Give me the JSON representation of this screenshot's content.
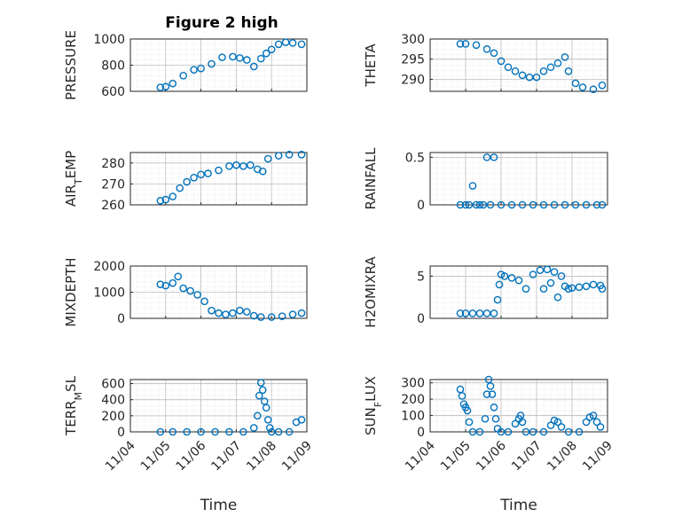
{
  "figure": {
    "title": "Figure 2 high"
  },
  "chart_data": [
    {
      "type": "scatter",
      "title": "Figure 2 high",
      "ylabel": "PRESSURE",
      "xlabel": "",
      "ylim": [
        600,
        1000
      ],
      "yticks": [
        600,
        800,
        1000
      ],
      "xlim": [
        0,
        5
      ],
      "grid": true,
      "minor_grid": true,
      "marker": "circle",
      "color": "#0072BD",
      "x": [
        0.85,
        1.0,
        1.2,
        1.5,
        1.8,
        2.0,
        2.3,
        2.6,
        2.9,
        3.1,
        3.3,
        3.5,
        3.7,
        3.85,
        4.0,
        4.2,
        4.4,
        4.6,
        4.85
      ],
      "y": [
        630,
        635,
        660,
        720,
        765,
        775,
        810,
        860,
        865,
        855,
        840,
        790,
        850,
        890,
        920,
        960,
        975,
        970,
        960
      ]
    },
    {
      "type": "scatter",
      "title": "",
      "ylabel": "THETA",
      "xlabel": "",
      "ylim": [
        287,
        300
      ],
      "yticks": [
        290,
        295,
        300
      ],
      "xlim": [
        0,
        5
      ],
      "grid": true,
      "minor_grid": true,
      "marker": "circle",
      "color": "#0072BD",
      "x": [
        0.85,
        1.0,
        1.3,
        1.6,
        1.8,
        2.0,
        2.2,
        2.4,
        2.6,
        2.8,
        3.0,
        3.2,
        3.4,
        3.6,
        3.8,
        3.9,
        4.1,
        4.3,
        4.6,
        4.85
      ],
      "y": [
        298.8,
        298.8,
        298.5,
        297.5,
        296.5,
        294.5,
        293,
        292,
        291,
        290.5,
        290.5,
        292,
        293,
        294,
        295.5,
        292,
        289,
        288,
        287.5,
        288.5
      ]
    },
    {
      "type": "scatter",
      "title": "",
      "ylabel": "AIR_TEMP",
      "xlabel": "",
      "ylim": [
        260,
        285
      ],
      "yticks": [
        260,
        270,
        280
      ],
      "xlim": [
        0,
        5
      ],
      "grid": true,
      "minor_grid": true,
      "marker": "circle",
      "color": "#0072BD",
      "x": [
        0.85,
        1.0,
        1.2,
        1.4,
        1.6,
        1.8,
        2.0,
        2.2,
        2.5,
        2.8,
        3.0,
        3.2,
        3.4,
        3.6,
        3.75,
        3.9,
        4.2,
        4.5,
        4.85
      ],
      "y": [
        262,
        262.5,
        264,
        268,
        271,
        273,
        274.5,
        275,
        276.5,
        278.5,
        279,
        278.5,
        279,
        277,
        276,
        282,
        283.5,
        284,
        284
      ]
    },
    {
      "type": "scatter",
      "title": "",
      "ylabel": "RAINFALL",
      "xlabel": "",
      "ylim": [
        0,
        0.55
      ],
      "yticks": [
        0,
        0.5
      ],
      "xlim": [
        0,
        5
      ],
      "grid": true,
      "minor_grid": true,
      "marker": "circle",
      "color": "#0072BD",
      "x": [
        0.85,
        1.0,
        1.1,
        1.2,
        1.3,
        1.4,
        1.5,
        1.6,
        1.7,
        1.8,
        2.0,
        2.3,
        2.6,
        2.9,
        3.2,
        3.5,
        3.8,
        4.1,
        4.4,
        4.7,
        4.85
      ],
      "y": [
        0,
        0,
        0,
        0.2,
        0,
        0,
        0,
        0.5,
        0,
        0.5,
        0,
        0,
        0,
        0,
        0,
        0,
        0,
        0,
        0,
        0,
        0
      ]
    },
    {
      "type": "scatter",
      "title": "",
      "ylabel": "MIXDEPTH",
      "xlabel": "",
      "ylim": [
        0,
        2000
      ],
      "yticks": [
        0,
        1000,
        2000
      ],
      "xlim": [
        0,
        5
      ],
      "grid": true,
      "minor_grid": true,
      "marker": "circle",
      "color": "#0072BD",
      "x": [
        0.85,
        1.0,
        1.2,
        1.35,
        1.5,
        1.7,
        1.9,
        2.1,
        2.3,
        2.5,
        2.7,
        2.9,
        3.1,
        3.3,
        3.5,
        3.7,
        4.0,
        4.3,
        4.6,
        4.85
      ],
      "y": [
        1300,
        1250,
        1350,
        1600,
        1150,
        1050,
        900,
        650,
        300,
        200,
        150,
        200,
        300,
        250,
        100,
        50,
        50,
        80,
        150,
        200
      ]
    },
    {
      "type": "scatter",
      "title": "",
      "ylabel": "H2OMIXRA",
      "xlabel": "",
      "ylim": [
        0,
        6.2
      ],
      "yticks": [
        0,
        5
      ],
      "xlim": [
        0,
        5
      ],
      "grid": true,
      "minor_grid": true,
      "marker": "circle",
      "color": "#0072BD",
      "x": [
        0.85,
        1.0,
        1.2,
        1.4,
        1.6,
        1.8,
        1.9,
        1.95,
        2.0,
        2.1,
        2.3,
        2.5,
        2.7,
        2.9,
        3.1,
        3.2,
        3.3,
        3.4,
        3.5,
        3.6,
        3.7,
        3.8,
        3.9,
        4.0,
        4.2,
        4.4,
        4.6,
        4.8,
        4.85
      ],
      "y": [
        0.6,
        0.6,
        0.6,
        0.6,
        0.6,
        0.6,
        2.2,
        4.0,
        5.2,
        5.0,
        4.8,
        4.5,
        3.5,
        5.2,
        5.7,
        3.5,
        5.8,
        4.2,
        5.5,
        2.5,
        5.0,
        3.8,
        3.5,
        3.6,
        3.7,
        3.8,
        4.0,
        3.9,
        3.5
      ]
    },
    {
      "type": "scatter",
      "title": "",
      "ylabel": "TERR_MSL",
      "xlabel": "Time",
      "ylim": [
        0,
        650
      ],
      "yticks": [
        0,
        200,
        400,
        600
      ],
      "xlim": [
        0,
        5
      ],
      "xticks": [
        "11/04",
        "11/05",
        "11/06",
        "11/07",
        "11/08",
        "11/09"
      ],
      "grid": true,
      "minor_grid": true,
      "marker": "circle",
      "color": "#0072BD",
      "x": [
        0.85,
        1.2,
        1.6,
        2.0,
        2.4,
        2.8,
        3.2,
        3.5,
        3.6,
        3.65,
        3.7,
        3.75,
        3.8,
        3.85,
        3.9,
        3.95,
        4.0,
        4.2,
        4.5,
        4.7,
        4.85
      ],
      "y": [
        0,
        0,
        0,
        0,
        0,
        0,
        0,
        50,
        200,
        450,
        610,
        520,
        380,
        300,
        150,
        50,
        0,
        0,
        0,
        120,
        150
      ]
    },
    {
      "type": "scatter",
      "title": "",
      "ylabel": "SUN_FLUX",
      "xlabel": "Time",
      "ylim": [
        0,
        320
      ],
      "yticks": [
        0,
        100,
        200,
        300
      ],
      "xlim": [
        0,
        5
      ],
      "xticks": [
        "11/04",
        "11/05",
        "11/06",
        "11/07",
        "11/08",
        "11/09"
      ],
      "grid": true,
      "minor_grid": true,
      "marker": "circle",
      "color": "#0072BD",
      "x": [
        0.85,
        0.9,
        0.95,
        1.0,
        1.05,
        1.1,
        1.2,
        1.4,
        1.55,
        1.6,
        1.65,
        1.7,
        1.75,
        1.8,
        1.85,
        1.9,
        2.0,
        2.2,
        2.4,
        2.5,
        2.55,
        2.6,
        2.7,
        2.9,
        3.2,
        3.4,
        3.5,
        3.6,
        3.7,
        3.9,
        4.2,
        4.4,
        4.5,
        4.6,
        4.7,
        4.8
      ],
      "y": [
        260,
        220,
        170,
        150,
        130,
        60,
        0,
        0,
        80,
        230,
        320,
        280,
        230,
        150,
        80,
        20,
        0,
        0,
        50,
        80,
        100,
        60,
        0,
        0,
        0,
        40,
        70,
        60,
        30,
        0,
        0,
        60,
        90,
        100,
        60,
        30
      ]
    }
  ]
}
